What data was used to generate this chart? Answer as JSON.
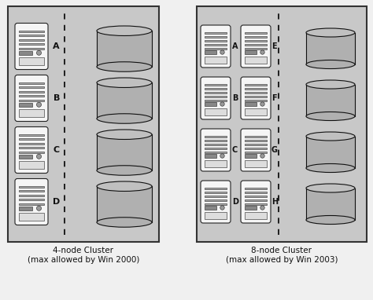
{
  "bg_color": "#f0f0f0",
  "panel_color": "#c8c8c8",
  "server_color": "#f5f5f5",
  "server_border": "#222222",
  "disk_top_color": "#c0c0c0",
  "disk_body_color": "#b0b0b0",
  "disk_border": "#111111",
  "dashed_line_color": "#111111",
  "label4": "4-node Cluster\n(max allowed by Win 2000)",
  "label8": "8-node Cluster\n(max allowed by Win 2003)",
  "nodes4": [
    "A",
    "B",
    "C",
    "D"
  ],
  "nodes8_left": [
    "A",
    "B",
    "C",
    "D"
  ],
  "nodes8_right": [
    "E",
    "F",
    "G",
    "H"
  ]
}
